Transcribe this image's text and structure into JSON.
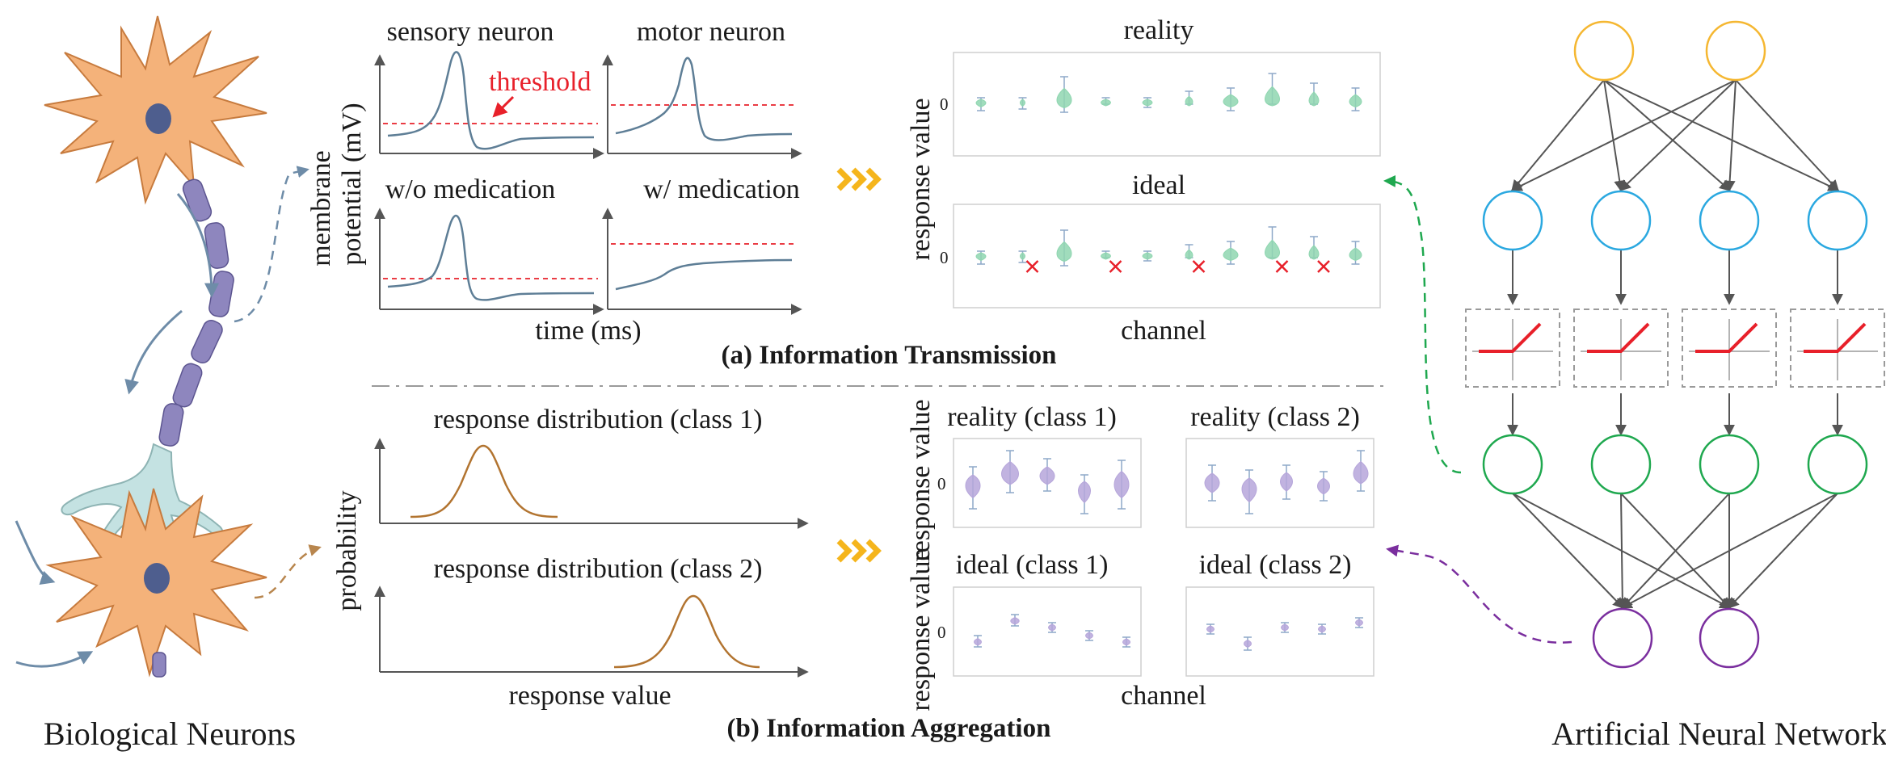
{
  "captions": {
    "biological": "Biological Neurons",
    "artificial": "Artificial Neural Network"
  },
  "panel_a": {
    "title": "(a) Information Transmission",
    "plots": [
      {
        "title": "sensory neuron"
      },
      {
        "title": "motor neuron"
      },
      {
        "title": "w/o medication"
      },
      {
        "title": "w/ medication"
      }
    ],
    "threshold_label": "threshold",
    "ylabel": [
      "membrane",
      "potential (mV)"
    ],
    "xlabel": "time (ms)",
    "violin_titles": {
      "reality": "reality",
      "ideal": "ideal"
    },
    "violin_ylabel": "response value",
    "violin_xlabel": "channel",
    "zero_tick": "0"
  },
  "panel_b": {
    "title": "(b) Information Aggregation",
    "dist_titles": [
      "response distribution (class 1)",
      "response distribution (class 2)"
    ],
    "dist_ylabel": "probability",
    "dist_xlabel": "response value",
    "violin_titles": [
      "reality (class 1)",
      "reality (class 2)",
      "ideal (class 1)",
      "ideal (class 2)"
    ],
    "violin_ylabel": "response value",
    "violin_xlabel": "channel",
    "zero_tick": "0"
  },
  "colors": {
    "neuron_body": "#F4B27A",
    "nucleus": "#4E5E8E",
    "axon": "#8E86BE",
    "dendrite": "#C4E2E2",
    "arrow_blue": "#6E8CA8",
    "arrow_orange": "#B8864E",
    "green_violin": "#8FD6B0",
    "purple_violin": "#B6A6DA",
    "threshold": "#E8202A",
    "trace": "#5E7E96",
    "dist": "#B27430",
    "chevron": "#F5B51C",
    "node_input": "#F5B731",
    "node_hidden": "#2AA8E0",
    "node_act": "#1FA84F",
    "node_output": "#7A2E9E",
    "relu": "#E8202A"
  }
}
